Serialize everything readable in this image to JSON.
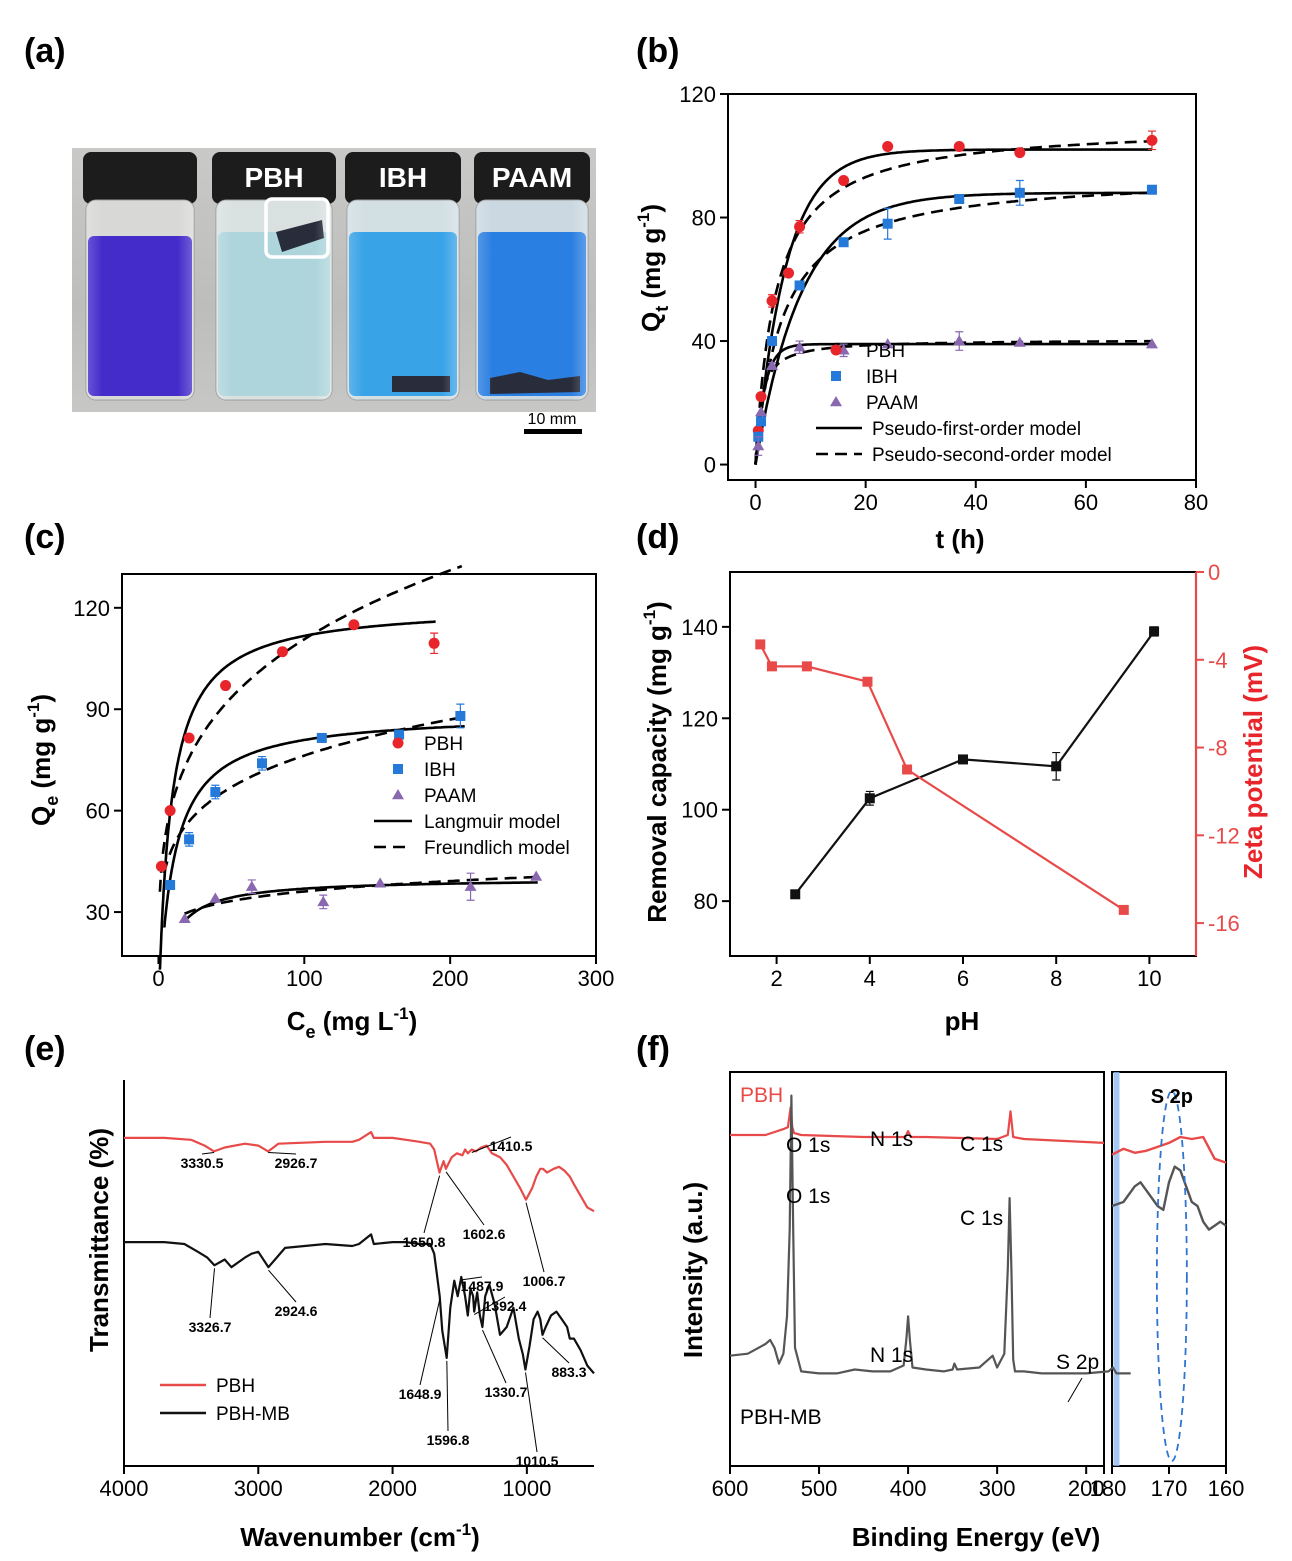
{
  "figure": {
    "panel_labels": [
      "(a)",
      "(b)",
      "(c)",
      "(d)",
      "(e)",
      "(f)"
    ]
  },
  "panel_a": {
    "vial_labels": [
      "",
      "PBH",
      "IBH",
      "PAAM"
    ],
    "scale_bar": "10 mm",
    "colors": {
      "dye_dark": "#3a21c8",
      "dye_light": "#a9d3d9",
      "dye_blue": "#2e9ee6",
      "dye_deep": "#1f78e0",
      "cap": "#1c1c1c"
    }
  },
  "chart_data": [
    {
      "panel": "(b)",
      "type": "scatter",
      "xlabel": "t (h)",
      "ylabel": {
        "main": "Q",
        "sub": "t",
        "unit": " (mg g",
        "sup": "-1",
        "close": ")"
      },
      "xlim": [
        -5,
        80
      ],
      "ylim": [
        -5,
        120
      ],
      "xticks": [
        0,
        20,
        40,
        60,
        80
      ],
      "yticks": [
        0,
        40,
        80,
        120
      ],
      "series": [
        {
          "name": "PBH",
          "color": "#e8252b",
          "marker": "circle",
          "x": [
            0.5,
            1,
            3,
            6,
            8,
            16,
            24,
            37,
            48,
            72
          ],
          "y": [
            11,
            22,
            53,
            62,
            77,
            92,
            103,
            103,
            101,
            105
          ],
          "err": [
            0,
            0,
            2,
            0,
            2,
            1,
            1,
            1,
            1,
            3
          ]
        },
        {
          "name": "IBH",
          "color": "#2479d9",
          "marker": "square",
          "x": [
            0.5,
            1,
            3,
            8,
            16,
            24,
            37,
            48,
            72
          ],
          "y": [
            9,
            14,
            40,
            58,
            72,
            78,
            86,
            88,
            89
          ],
          "err": [
            0,
            0,
            1,
            1,
            1,
            5,
            1,
            4,
            1
          ]
        },
        {
          "name": "PAAM",
          "color": "#8968b0",
          "marker": "triangle",
          "x": [
            0.5,
            1,
            3,
            8,
            16,
            24,
            37,
            48,
            72
          ],
          "y": [
            6,
            17,
            32,
            38,
            37,
            39,
            40,
            39.5,
            39
          ],
          "err": [
            3,
            0,
            1,
            2,
            2,
            0,
            3,
            0,
            0
          ]
        }
      ],
      "models": [
        {
          "name": "Pseudo-first-order model",
          "style": "solid",
          "kind": "pfo",
          "params": [
            {
              "qe": 102,
              "k": 0.18
            },
            {
              "qe": 88,
              "k": 0.12
            },
            {
              "qe": 39,
              "k": 0.6
            }
          ]
        },
        {
          "name": "Pseudo-second-order model",
          "style": "dashed",
          "kind": "pso",
          "params": [
            {
              "qe": 110,
              "k": 0.0025
            },
            {
              "qe": 94,
              "k": 0.0022
            },
            {
              "qe": 40.5,
              "k": 0.025
            }
          ]
        }
      ]
    },
    {
      "panel": "(c)",
      "type": "scatter",
      "xlabel": {
        "main": "C",
        "sub": "e",
        "unit": " (mg L",
        "sup": "-1",
        "close": ")"
      },
      "ylabel": {
        "main": "Q",
        "sub": "e",
        "unit": " (mg g",
        "sup": "-1",
        "close": ")"
      },
      "xlim": [
        -25,
        300
      ],
      "ylim": [
        17,
        130
      ],
      "xticks": [
        0,
        100,
        200,
        300
      ],
      "yticks": [
        30,
        60,
        90,
        120
      ],
      "series": [
        {
          "name": "PBH",
          "color": "#e8252b",
          "marker": "circle",
          "x": [
            2,
            8,
            21,
            46,
            85,
            134,
            189
          ],
          "y": [
            43.5,
            60,
            81.5,
            97,
            107,
            115,
            109.5
          ],
          "err": [
            0,
            0,
            0,
            0,
            0,
            0,
            3
          ]
        },
        {
          "name": "IBH",
          "color": "#2479d9",
          "marker": "square",
          "x": [
            8,
            21,
            39,
            71,
            112,
            165,
            207
          ],
          "y": [
            38,
            51.5,
            65.5,
            74,
            81.5,
            82.5,
            88
          ],
          "err": [
            0,
            2,
            2,
            2,
            0,
            0,
            3.5
          ]
        },
        {
          "name": "PAAM",
          "color": "#8968b0",
          "marker": "triangle",
          "x": [
            18,
            39,
            64,
            113,
            152,
            214,
            259
          ],
          "y": [
            28,
            34,
            37.5,
            33,
            38.5,
            37.5,
            40.5
          ],
          "err": [
            0,
            0,
            2,
            2,
            0,
            4,
            0
          ]
        }
      ],
      "models": [
        {
          "name": "Langmuir model",
          "style": "solid",
          "kind": "langmuir",
          "params": [
            {
              "qm": 121,
              "kl": 0.12,
              "x0": 1,
              "x1": 190
            },
            {
              "qm": 89,
              "kl": 0.1,
              "x0": 4,
              "x1": 210
            },
            {
              "qm": 40,
              "kl": 0.12,
              "x0": 18,
              "x1": 260
            }
          ]
        },
        {
          "name": "Freundlich model",
          "style": "dashed",
          "kind": "freundlich",
          "params": [
            {
              "kf": 36,
              "n": 4.1,
              "x0": 1,
              "x1": 208
            },
            {
              "kf": 32,
              "n": 5.3,
              "x0": 4,
              "x1": 210
            },
            {
              "kf": 21,
              "n": 8.5,
              "x0": 18,
              "x1": 260
            }
          ]
        }
      ]
    },
    {
      "panel": "(d)",
      "type": "line",
      "xlabel": "pH",
      "ylabel_left": {
        "main": "Removal capacity (mg g",
        "sup": "-1",
        "close": ")"
      },
      "ylabel_right": "Zeta potential (mV)",
      "xlim": [
        1,
        11
      ],
      "ylim_left": [
        68,
        152
      ],
      "ylim_right": [
        -17.5,
        0
      ],
      "xticks": [
        2,
        4,
        6,
        8,
        10
      ],
      "yticks_left": [
        80,
        100,
        120,
        140
      ],
      "yticks_right": [
        0,
        -4,
        -8,
        -12,
        -16
      ],
      "series": [
        {
          "name": "Removal capacity",
          "axis": "left",
          "color": "#111111",
          "x": [
            2.4,
            4,
            6,
            8,
            10.1
          ],
          "y": [
            81.5,
            102.5,
            111,
            109.5,
            139
          ],
          "err": [
            0,
            1.5,
            0,
            3,
            1
          ]
        },
        {
          "name": "Zeta potential",
          "axis": "right",
          "color": "#e84a4a",
          "x": [
            1.65,
            1.9,
            2.65,
            3.95,
            4.8,
            9.45
          ],
          "y": [
            -3.3,
            -4.3,
            -4.3,
            -5,
            -9,
            -15.4
          ],
          "err": [
            0,
            0,
            0,
            0,
            0,
            0
          ]
        }
      ]
    },
    {
      "panel": "(e)",
      "type": "line",
      "xlabel": {
        "main": "Wavenumber (cm",
        "sup": "-1",
        "close": ")"
      },
      "ylabel": "Transmittance (%)",
      "xlim": [
        4000,
        500
      ],
      "ylim": [
        0,
        100
      ],
      "xticks": [
        4000,
        3000,
        2000,
        1000
      ],
      "series": [
        {
          "name": "PBH",
          "color": "#e84a4a",
          "x": [
            4000,
            3700,
            3500,
            3400,
            3330,
            3250,
            3100,
            3000,
            2926,
            2850,
            2500,
            2300,
            2250,
            2160,
            2140,
            2000,
            1900,
            1800,
            1720,
            1690,
            1650.8,
            1620,
            1602.6,
            1560,
            1520,
            1480,
            1460,
            1440,
            1410.5,
            1380,
            1340,
            1300,
            1260,
            1200,
            1150,
            1100,
            1050,
            1006.7,
            960,
            930,
            900,
            880,
            850,
            800,
            760,
            720,
            680,
            650,
            600,
            550,
            500
          ],
          "y": [
            85,
            85,
            84.5,
            83,
            81.5,
            82.5,
            83.5,
            83,
            81.5,
            83.5,
            84,
            84,
            84.5,
            86.5,
            85,
            85,
            84.5,
            84,
            83.5,
            82,
            76,
            79,
            77,
            80,
            81,
            80.5,
            82,
            81,
            82,
            81.5,
            82.5,
            83,
            81,
            80,
            78,
            75,
            72,
            69,
            72,
            75,
            77,
            77,
            76,
            77,
            77.5,
            76.5,
            75,
            73,
            70,
            67,
            66
          ]
        },
        {
          "name": "PBH-MB",
          "color": "#111111",
          "x": [
            4000,
            3700,
            3550,
            3450,
            3380,
            3326.7,
            3250,
            3200,
            3100,
            3050,
            3000,
            2924.6,
            2850,
            2800,
            2500,
            2300,
            2250,
            2160,
            2140,
            2000,
            1900,
            1800,
            1720,
            1690,
            1648.9,
            1630,
            1596.8,
            1570,
            1540,
            1515,
            1487.9,
            1460,
            1440,
            1420,
            1400,
            1392.4,
            1370,
            1350,
            1330.7,
            1310,
            1280,
            1240,
            1200,
            1150,
            1100,
            1060,
            1030,
            1010.5,
            980,
            950,
            920,
            900,
            883.3,
            860,
            820,
            780,
            740,
            700,
            680,
            650,
            600,
            550,
            500
          ],
          "y": [
            58,
            58,
            57.5,
            55.5,
            54,
            52,
            53.5,
            51.5,
            54,
            55,
            55.5,
            51.5,
            54.5,
            56.5,
            57.5,
            57,
            57.5,
            60,
            57.5,
            58,
            58,
            57.5,
            57.5,
            55,
            44,
            35,
            28,
            41,
            48,
            44,
            49,
            44,
            39,
            46,
            44,
            40,
            45,
            39,
            36,
            44,
            47,
            42,
            34,
            36,
            41,
            33,
            29,
            25,
            31,
            38,
            40,
            38,
            34,
            36,
            39,
            40,
            38,
            36,
            33,
            33,
            30,
            26,
            24
          ]
        }
      ],
      "annotations": [
        "3330.5",
        "2926.7",
        "1650.8",
        "1602.6",
        "1410.5",
        "1006.7",
        "3326.7",
        "2924.6",
        "1648.9",
        "1596.8",
        "1487.9",
        "1392.4",
        "1330.7",
        "1010.5",
        "883.3"
      ]
    },
    {
      "panel": "(f)",
      "type": "line",
      "xlabel": "Binding Energy (eV)",
      "ylabel": "Intensity (a.u.)",
      "xlim": [
        600,
        180
      ],
      "xlim_inset": [
        180,
        160
      ],
      "xticks": [
        600,
        500,
        400,
        300,
        200,
        180
      ],
      "xticks_inset": [
        180,
        170,
        160
      ],
      "inset_title": "S 2p",
      "series": [
        {
          "name": "PBH",
          "color": "#e84a4a",
          "x": [
            600,
            560,
            540,
            535,
            532,
            530,
            528,
            520,
            450,
            403,
            400,
            397,
            380,
            300,
            288,
            285,
            282,
            270,
            180
          ],
          "y": [
            84,
            84,
            85.5,
            86,
            91,
            86,
            84.5,
            84,
            83.5,
            83.5,
            85,
            83.5,
            83.5,
            83,
            84,
            90,
            83.5,
            83,
            82
          ],
          "inset_x": [
            180,
            178,
            176,
            174,
            172,
            170,
            168,
            166,
            164,
            162,
            160
          ],
          "inset_y": [
            79,
            80.5,
            79.5,
            80,
            81,
            82,
            83.5,
            83,
            83.5,
            78,
            77
          ]
        },
        {
          "name": "PBH-MB",
          "color": "#555555",
          "x": [
            600,
            580,
            560,
            555,
            550,
            545,
            540,
            536,
            533,
            531,
            529,
            527,
            520,
            500,
            480,
            460,
            440,
            420,
            405,
            402,
            400,
            398,
            395,
            380,
            360,
            350,
            348,
            345,
            320,
            305,
            300,
            292,
            288,
            286,
            284,
            282,
            280,
            270,
            250,
            200,
            175,
            170,
            166,
            163,
            160,
            155,
            150
          ],
          "y": [
            28,
            28.5,
            31,
            32,
            30,
            26,
            28.5,
            38,
            60,
            94,
            60,
            30,
            24,
            23.5,
            23.5,
            24.5,
            24,
            24,
            25.5,
            32,
            38,
            32,
            25,
            24.5,
            24,
            24.5,
            26,
            24.5,
            25,
            28,
            25,
            28.5,
            50,
            68,
            50,
            27,
            24,
            24,
            23.5,
            23.5,
            24,
            25,
            23.5,
            23.5,
            23.5,
            23.5,
            23.5
          ],
          "inset_x": [
            180,
            178,
            176,
            175,
            174,
            172,
            171,
            170,
            169,
            168,
            167,
            166,
            165,
            164,
            163,
            162,
            161,
            160
          ],
          "inset_y": [
            66,
            67,
            71,
            72,
            70,
            66,
            65,
            72,
            76,
            75,
            71,
            67,
            66,
            62,
            60,
            61,
            62,
            61
          ]
        }
      ],
      "labels": [
        "PBH",
        "O 1s",
        "N 1s",
        "C 1s",
        "O 1s",
        "C 1s",
        "N 1s",
        "S 2p",
        "PBH-MB"
      ]
    }
  ]
}
